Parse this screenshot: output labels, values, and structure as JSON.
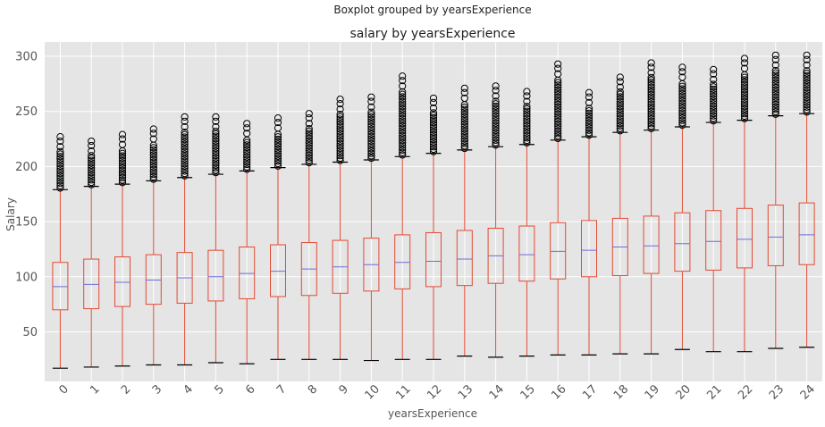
{
  "chart_data": {
    "type": "boxplot",
    "suptitle": "Boxplot grouped by yearsExperience",
    "title": "salary by yearsExperience",
    "xlabel": "yearsExperience",
    "ylabel": "Salary",
    "ylim": [
      5,
      313
    ],
    "yticks": [
      50,
      100,
      150,
      200,
      250,
      300
    ],
    "grid": true,
    "colors": {
      "background": "#e5e5e5",
      "grid": "#ffffff",
      "box": "#e24a33",
      "median": "#6d6dd9",
      "cap": "#000000",
      "outlier": "#000000"
    },
    "categories": [
      "0",
      "1",
      "2",
      "3",
      "4",
      "5",
      "6",
      "7",
      "8",
      "9",
      "10",
      "11",
      "12",
      "13",
      "14",
      "15",
      "16",
      "17",
      "18",
      "19",
      "20",
      "21",
      "22",
      "23",
      "24"
    ],
    "boxes": [
      {
        "min": 17,
        "q1": 70,
        "median": 91,
        "q3": 113,
        "max": 179,
        "fmax": 227
      },
      {
        "min": 18,
        "q1": 71,
        "median": 93,
        "q3": 116,
        "max": 182,
        "fmax": 223
      },
      {
        "min": 19,
        "q1": 73,
        "median": 95,
        "q3": 118,
        "max": 184,
        "fmax": 229
      },
      {
        "min": 20,
        "q1": 75,
        "median": 97,
        "q3": 120,
        "max": 187,
        "fmax": 234
      },
      {
        "min": 20,
        "q1": 76,
        "median": 99,
        "q3": 122,
        "max": 190,
        "fmax": 245
      },
      {
        "min": 22,
        "q1": 78,
        "median": 100,
        "q3": 124,
        "max": 193,
        "fmax": 245
      },
      {
        "min": 21,
        "q1": 80,
        "median": 103,
        "q3": 127,
        "max": 196,
        "fmax": 239
      },
      {
        "min": 25,
        "q1": 82,
        "median": 105,
        "q3": 129,
        "max": 199,
        "fmax": 244
      },
      {
        "min": 25,
        "q1": 83,
        "median": 107,
        "q3": 131,
        "max": 202,
        "fmax": 248
      },
      {
        "min": 25,
        "q1": 85,
        "median": 109,
        "q3": 133,
        "max": 204,
        "fmax": 261
      },
      {
        "min": 24,
        "q1": 87,
        "median": 111,
        "q3": 135,
        "max": 206,
        "fmax": 263
      },
      {
        "min": 25,
        "q1": 89,
        "median": 113,
        "q3": 138,
        "max": 209,
        "fmax": 282
      },
      {
        "min": 25,
        "q1": 91,
        "median": 114,
        "q3": 140,
        "max": 212,
        "fmax": 262
      },
      {
        "min": 28,
        "q1": 92,
        "median": 116,
        "q3": 142,
        "max": 215,
        "fmax": 271
      },
      {
        "min": 27,
        "q1": 94,
        "median": 119,
        "q3": 144,
        "max": 218,
        "fmax": 273
      },
      {
        "min": 28,
        "q1": 96,
        "median": 120,
        "q3": 146,
        "max": 220,
        "fmax": 268
      },
      {
        "min": 29,
        "q1": 98,
        "median": 123,
        "q3": 149,
        "max": 224,
        "fmax": 293
      },
      {
        "min": 29,
        "q1": 100,
        "median": 124,
        "q3": 151,
        "max": 227,
        "fmax": 267
      },
      {
        "min": 30,
        "q1": 101,
        "median": 127,
        "q3": 153,
        "max": 231,
        "fmax": 281
      },
      {
        "min": 30,
        "q1": 103,
        "median": 128,
        "q3": 155,
        "max": 233,
        "fmax": 294
      },
      {
        "min": 34,
        "q1": 105,
        "median": 130,
        "q3": 158,
        "max": 236,
        "fmax": 290
      },
      {
        "min": 32,
        "q1": 106,
        "median": 132,
        "q3": 160,
        "max": 240,
        "fmax": 288
      },
      {
        "min": 32,
        "q1": 108,
        "median": 134,
        "q3": 162,
        "max": 242,
        "fmax": 298
      },
      {
        "min": 35,
        "q1": 110,
        "median": 136,
        "q3": 165,
        "max": 246,
        "fmax": 301
      },
      {
        "min": 36,
        "q1": 111,
        "median": 138,
        "q3": 167,
        "max": 248,
        "fmax": 301
      }
    ]
  }
}
